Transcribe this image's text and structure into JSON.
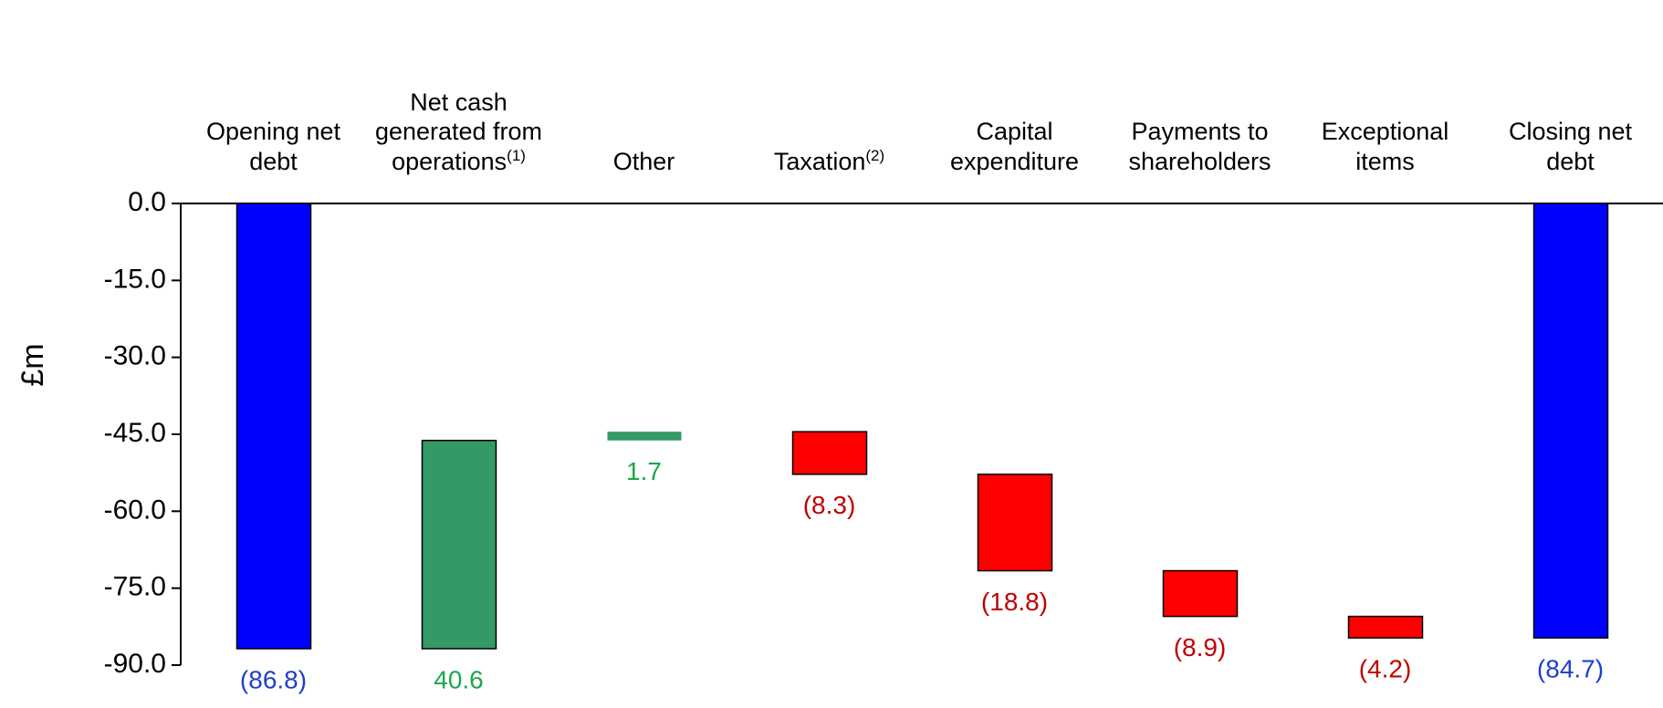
{
  "chart_data": {
    "type": "waterfall",
    "y_label": "£m",
    "categories": [
      "Opening net debt",
      "Net cash generated from operations",
      "Other",
      "Taxation",
      "Capital expenditure",
      "Payments to shareholders",
      "Exceptional items",
      "Closing net debt"
    ],
    "category_notes": [
      null,
      "(1)",
      null,
      "(2)",
      null,
      null,
      null,
      null
    ],
    "measures": [
      "absolute",
      "relative",
      "relative",
      "relative",
      "relative",
      "relative",
      "relative",
      "absolute"
    ],
    "values": [
      -86.8,
      40.6,
      1.7,
      -8.3,
      -18.8,
      -8.9,
      -4.2,
      -84.7
    ],
    "value_labels": [
      "(86.8)",
      "40.6",
      "1.7",
      "(8.3)",
      "(18.8)",
      "(8.9)",
      "(4.2)",
      "(84.7)"
    ],
    "colors": [
      "#0000ff",
      "#339966",
      "#339966",
      "#ff0000",
      "#ff0000",
      "#ff0000",
      "#ff0000",
      "#0000ff"
    ],
    "label_colors": [
      "#1f3fcc",
      "#1aa84a",
      "#1aa84a",
      "#c00000",
      "#c00000",
      "#c00000",
      "#c00000",
      "#1f3fcc"
    ],
    "ylim": [
      -90,
      0
    ],
    "yticks": [
      {
        "value": 0,
        "label": "0.0"
      },
      {
        "value": -15,
        "label": "-15.0"
      },
      {
        "value": -30,
        "label": "-30.0"
      },
      {
        "value": -45,
        "label": "-45.0"
      },
      {
        "value": -60,
        "label": "-60.0"
      },
      {
        "value": -75,
        "label": "-75.0"
      },
      {
        "value": -90,
        "label": "-90.0"
      }
    ]
  }
}
